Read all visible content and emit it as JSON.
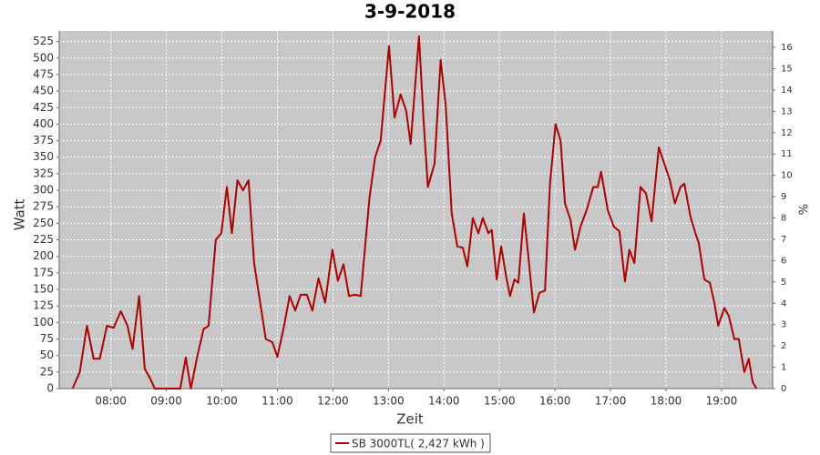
{
  "chart_data": {
    "type": "line",
    "title": "3-9-2018",
    "x_label": "Zeit",
    "y_label": "Watt",
    "y2_label": "%",
    "series": [
      {
        "name": "SB 3000TL( 2,427 kWh )",
        "color": "#b00000",
        "x": [
          7.31,
          7.44,
          7.57,
          7.69,
          7.8,
          7.93,
          8.05,
          8.18,
          8.3,
          8.39,
          8.51,
          8.61,
          8.71,
          8.79,
          9.15,
          9.25,
          9.35,
          9.44,
          9.56,
          9.67,
          9.76,
          9.89,
          9.99,
          10.09,
          10.18,
          10.28,
          10.38,
          10.48,
          10.58,
          10.69,
          10.79,
          10.91,
          11.0,
          11.12,
          11.22,
          11.32,
          11.42,
          11.53,
          11.63,
          11.74,
          11.86,
          11.99,
          12.09,
          12.19,
          12.29,
          12.4,
          12.5,
          12.66,
          12.76,
          12.86,
          13.01,
          13.11,
          13.22,
          13.32,
          13.4,
          13.55,
          13.63,
          13.71,
          13.83,
          13.94,
          14.03,
          14.14,
          14.24,
          14.34,
          14.42,
          14.52,
          14.62,
          14.7,
          14.8,
          14.86,
          14.95,
          15.03,
          15.13,
          15.19,
          15.27,
          15.34,
          15.44,
          15.52,
          15.62,
          15.72,
          15.82,
          15.91,
          16.01,
          16.1,
          16.18,
          16.28,
          16.36,
          16.46,
          16.57,
          16.69,
          16.77,
          16.83,
          16.95,
          17.06,
          17.16,
          17.26,
          17.34,
          17.43,
          17.54,
          17.64,
          17.74,
          17.87,
          17.97,
          18.07,
          18.16,
          18.26,
          18.33,
          18.44,
          18.53,
          18.59,
          18.69,
          18.79,
          18.87,
          18.94,
          19.05,
          19.13,
          19.23,
          19.31,
          19.41,
          19.49,
          19.56,
          19.63
        ],
        "values": [
          0,
          25,
          95,
          45,
          45,
          95,
          92,
          117,
          95,
          60,
          140,
          30,
          15,
          0,
          0,
          0,
          47,
          0,
          50,
          90,
          95,
          225,
          235,
          305,
          235,
          315,
          300,
          315,
          190,
          130,
          75,
          70,
          48,
          95,
          140,
          118,
          142,
          142,
          118,
          167,
          130,
          210,
          163,
          188,
          140,
          142,
          140,
          290,
          350,
          375,
          518,
          410,
          445,
          420,
          370,
          533,
          410,
          305,
          340,
          497,
          430,
          265,
          215,
          213,
          185,
          258,
          235,
          258,
          235,
          240,
          165,
          215,
          165,
          140,
          165,
          160,
          265,
          200,
          115,
          145,
          148,
          310,
          400,
          375,
          280,
          255,
          210,
          245,
          270,
          305,
          305,
          328,
          270,
          245,
          238,
          162,
          210,
          190,
          305,
          295,
          253,
          365,
          340,
          315,
          280,
          305,
          310,
          260,
          235,
          220,
          165,
          160,
          130,
          95,
          122,
          110,
          75,
          75,
          25,
          45,
          10,
          0
        ]
      }
    ],
    "xlim": [
      7.07,
      19.92
    ],
    "xticks": [
      {
        "value": 8,
        "label": "08:00"
      },
      {
        "value": 9,
        "label": "09:00"
      },
      {
        "value": 10,
        "label": "10:00"
      },
      {
        "value": 11,
        "label": "11:00"
      },
      {
        "value": 12,
        "label": "12:00"
      },
      {
        "value": 13,
        "label": "13:00"
      },
      {
        "value": 14,
        "label": "14:00"
      },
      {
        "value": 15,
        "label": "15:00"
      },
      {
        "value": 16,
        "label": "16:00"
      },
      {
        "value": 17,
        "label": "17:00"
      },
      {
        "value": 18,
        "label": "18:00"
      },
      {
        "value": 19,
        "label": "19:00"
      }
    ],
    "ylim": [
      0,
      541
    ],
    "yticks": [
      0,
      25,
      50,
      75,
      100,
      125,
      150,
      175,
      200,
      225,
      250,
      275,
      300,
      325,
      350,
      375,
      400,
      425,
      450,
      475,
      500,
      525
    ],
    "y2lim": [
      0,
      16.77
    ],
    "y2ticks": [
      0,
      1,
      2,
      3,
      4,
      5,
      6,
      7,
      8,
      9,
      10,
      11,
      12,
      13,
      14,
      15,
      16
    ],
    "grid": true,
    "legend": "bottom"
  }
}
